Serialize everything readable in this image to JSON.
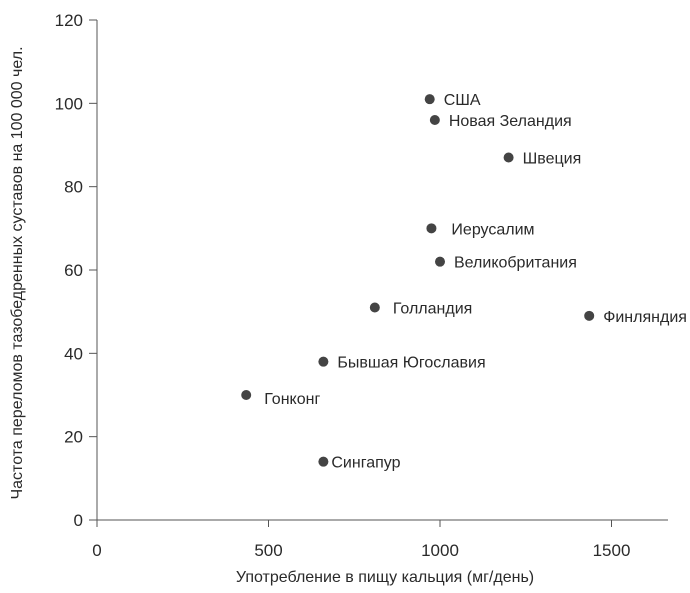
{
  "chart_data": {
    "type": "scatter",
    "title": "",
    "xlabel": "Употребление в пищу кальция (мг/день)",
    "ylabel": "Частота переломов тазобедренных суставов на 100 000 чел.",
    "xlim": [
      0,
      1650
    ],
    "ylim": [
      0,
      120
    ],
    "x_ticks": [
      0,
      500,
      1000,
      1500
    ],
    "y_ticks": [
      0,
      20,
      40,
      60,
      80,
      100,
      120
    ],
    "grid": false,
    "points": [
      {
        "label": "США",
        "x": 970,
        "y": 101
      },
      {
        "label": "Новая Зеландия",
        "x": 985,
        "y": 96
      },
      {
        "label": "Швеция",
        "x": 1200,
        "y": 87
      },
      {
        "label": "Иерусалим",
        "x": 975,
        "y": 70
      },
      {
        "label": "Великобритания",
        "x": 1000,
        "y": 62
      },
      {
        "label": "Голландия",
        "x": 810,
        "y": 51
      },
      {
        "label": "Финляндия",
        "x": 1435,
        "y": 49
      },
      {
        "label": "Бывшая Югославия",
        "x": 660,
        "y": 38
      },
      {
        "label": "Гонконг",
        "x": 435,
        "y": 30
      },
      {
        "label": "Сингапур",
        "x": 660,
        "y": 14
      }
    ]
  }
}
